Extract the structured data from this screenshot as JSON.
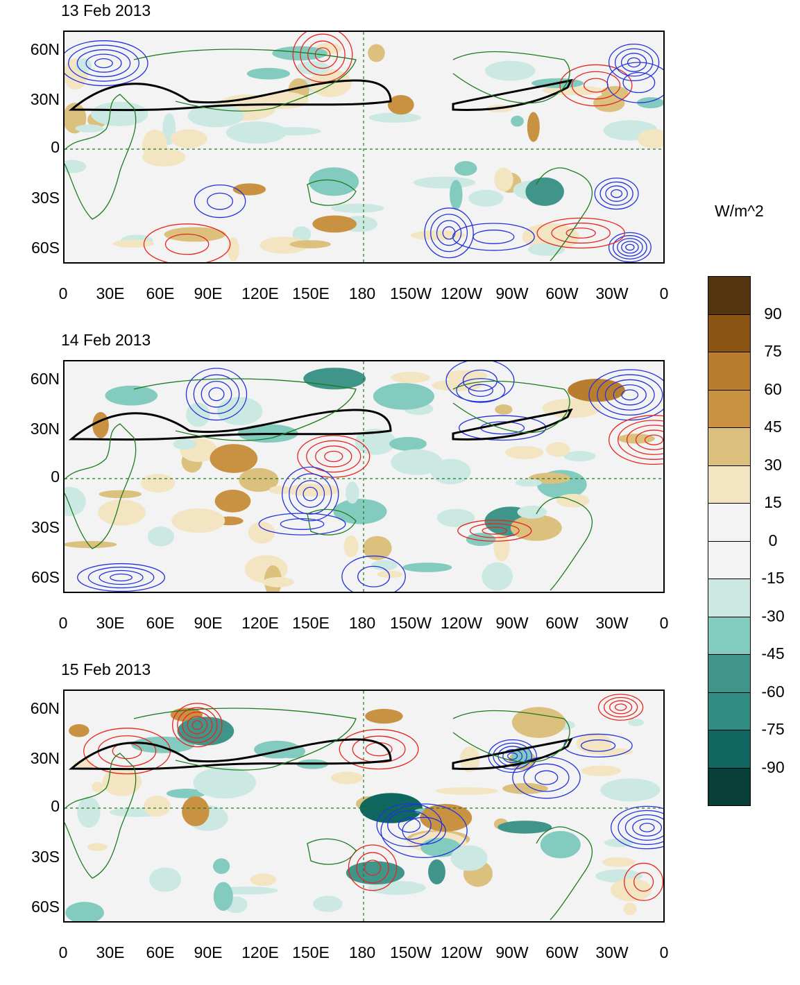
{
  "panels": [
    {
      "title": "13 Feb 2013"
    },
    {
      "title": "14 Feb 2013"
    },
    {
      "title": "15 Feb 2013"
    }
  ],
  "lat_labels": [
    "60N",
    "30N",
    "0",
    "30S",
    "60S"
  ],
  "lon_labels": [
    "0",
    "30E",
    "60E",
    "90E",
    "120E",
    "150E",
    "180",
    "150W",
    "120W",
    "90W",
    "60W",
    "30W",
    "0"
  ],
  "colorbar": {
    "units": "W/m^2",
    "labels": [
      "90",
      "75",
      "60",
      "45",
      "30",
      "15",
      "0",
      "-15",
      "-30",
      "-45",
      "-60",
      "-75",
      "-90"
    ],
    "colors": [
      "#553410",
      "#8a5413",
      "#b97d30",
      "#c99142",
      "#dcc07d",
      "#f3e4c2",
      "#f3f3f3",
      "#f3f3f3",
      "#cbe9e2",
      "#83cbbf",
      "#3f958a",
      "#318d84",
      "#0f6660",
      "#073f38"
    ]
  },
  "contour_colors": {
    "positive": "#e8251f",
    "negative": "#2233dd",
    "jet": "#000000",
    "coast": "#1e7a1e"
  }
}
